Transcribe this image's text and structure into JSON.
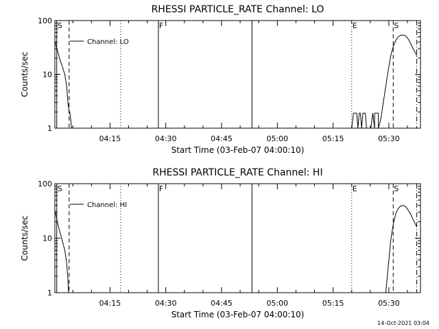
{
  "chart_data": [
    {
      "type": "line",
      "title": "RHESSI PARTICLE_RATE Channel: LO",
      "xlabel": "Start Time (03-Feb-07 04:00:10)",
      "ylabel": "Counts/sec",
      "yscale": "log",
      "xlim": [
        "04:00:10",
        "05:38:30"
      ],
      "ylim": [
        1,
        100
      ],
      "x_ticks": [
        "04:15",
        "04:30",
        "04:45",
        "05:00",
        "05:15",
        "05:30"
      ],
      "y_ticks": [
        "1",
        "10",
        "100"
      ],
      "grid": false,
      "legend": {
        "entries": [
          "Channel: LO"
        ],
        "placement": "top-left"
      },
      "markers": [
        {
          "time": "04:00:40",
          "label": "S",
          "style": "solid"
        },
        {
          "time": "04:04:00",
          "label": "",
          "style": "dashed"
        },
        {
          "time": "04:17:50",
          "label": "",
          "style": "dotted"
        },
        {
          "time": "04:28:00",
          "label": "F",
          "style": "solid"
        },
        {
          "time": "04:53:10",
          "label": "",
          "style": "solid"
        },
        {
          "time": "05:20:00",
          "label": "E",
          "style": "dotted"
        },
        {
          "time": "05:31:10",
          "label": "S",
          "style": "dashed"
        },
        {
          "time": "05:37:30",
          "label": "",
          "style": "dashdot"
        }
      ],
      "series": [
        {
          "name": "Channel: LO",
          "segments": [
            {
              "x": [
                "04:00:10",
                "04:00:50",
                "04:01:30",
                "04:02:10",
                "04:02:50",
                "04:03:20",
                "04:03:40",
                "04:04:00",
                "04:04:10",
                "04:04:30",
                "04:04:40"
              ],
              "y": [
                42,
                28,
                19,
                14,
                10,
                6,
                3,
                2,
                2,
                1.3,
                1
              ]
            },
            {
              "x": [
                "05:20:00",
                "05:20:30",
                "05:20:50",
                "05:21:20",
                "05:21:40",
                "05:22:00",
                "05:22:20",
                "05:22:40",
                "05:23:00",
                "05:23:20",
                "05:23:40",
                "05:24:00",
                "05:25:10",
                "05:25:40",
                "05:26:10"
              ],
              "y": [
                1,
                1.9,
                1.9,
                1.9,
                1,
                1.9,
                1.9,
                1,
                1.9,
                1.9,
                1.9,
                1,
                1,
                1.9,
                1
              ]
            },
            {
              "x": [
                "05:26:10",
                "05:26:10",
                "05:27:10",
                "05:27:10",
                "05:27:50",
                "05:28:30",
                "05:29:10",
                "05:29:50",
                "05:30:30",
                "05:31:10",
                "05:31:50",
                "05:32:30",
                "05:33:10",
                "05:33:50",
                "05:34:30",
                "05:35:10",
                "05:35:50",
                "05:36:30",
                "05:37:10",
                "05:37:30"
              ],
              "y": [
                1,
                1.9,
                1.9,
                1,
                1.5,
                3,
                6,
                12,
                22,
                33,
                43,
                50,
                53,
                54,
                52,
                46,
                38,
                30,
                25,
                22
              ]
            }
          ]
        }
      ]
    },
    {
      "type": "line",
      "title": "RHESSI PARTICLE_RATE Channel: HI",
      "xlabel": "Start Time (03-Feb-07 04:00:10)",
      "ylabel": "Counts/sec",
      "yscale": "log",
      "xlim": [
        "04:00:10",
        "05:38:30"
      ],
      "ylim": [
        1,
        100
      ],
      "x_ticks": [
        "04:15",
        "04:30",
        "04:45",
        "05:00",
        "05:15",
        "05:30"
      ],
      "y_ticks": [
        "1",
        "10",
        "100"
      ],
      "grid": false,
      "legend": {
        "entries": [
          "Channel: HI"
        ],
        "placement": "top-left"
      },
      "markers": [
        {
          "time": "04:00:40",
          "label": "S",
          "style": "solid"
        },
        {
          "time": "04:04:00",
          "label": "",
          "style": "dashed"
        },
        {
          "time": "04:17:50",
          "label": "",
          "style": "dotted"
        },
        {
          "time": "04:28:00",
          "label": "F",
          "style": "solid"
        },
        {
          "time": "04:53:10",
          "label": "",
          "style": "solid"
        },
        {
          "time": "05:20:00",
          "label": "E",
          "style": "dotted"
        },
        {
          "time": "05:31:10",
          "label": "S",
          "style": "dashed"
        },
        {
          "time": "05:37:30",
          "label": "",
          "style": "dashdot"
        }
      ],
      "series": [
        {
          "name": "Channel: HI",
          "segments": [
            {
              "x": [
                "04:00:10",
                "04:00:50",
                "04:01:30",
                "04:02:10",
                "04:02:50",
                "04:03:20",
                "04:03:40",
                "04:03:50"
              ],
              "y": [
                33,
                20,
                13,
                9,
                6,
                3.5,
                1.8,
                1
              ]
            },
            {
              "x": [
                "05:29:10",
                "05:29:50",
                "05:30:30",
                "05:31:10",
                "05:31:50",
                "05:32:30",
                "05:33:10",
                "05:33:50",
                "05:34:30",
                "05:35:10",
                "05:35:50",
                "05:36:30",
                "05:37:10",
                "05:37:30"
              ],
              "y": [
                1,
                3,
                9,
                18,
                28,
                35,
                39,
                40,
                38,
                33,
                28,
                22,
                18,
                16
              ]
            }
          ]
        }
      ]
    }
  ],
  "footer": {
    "timestamp": "14-Oct-2021 03:04"
  }
}
